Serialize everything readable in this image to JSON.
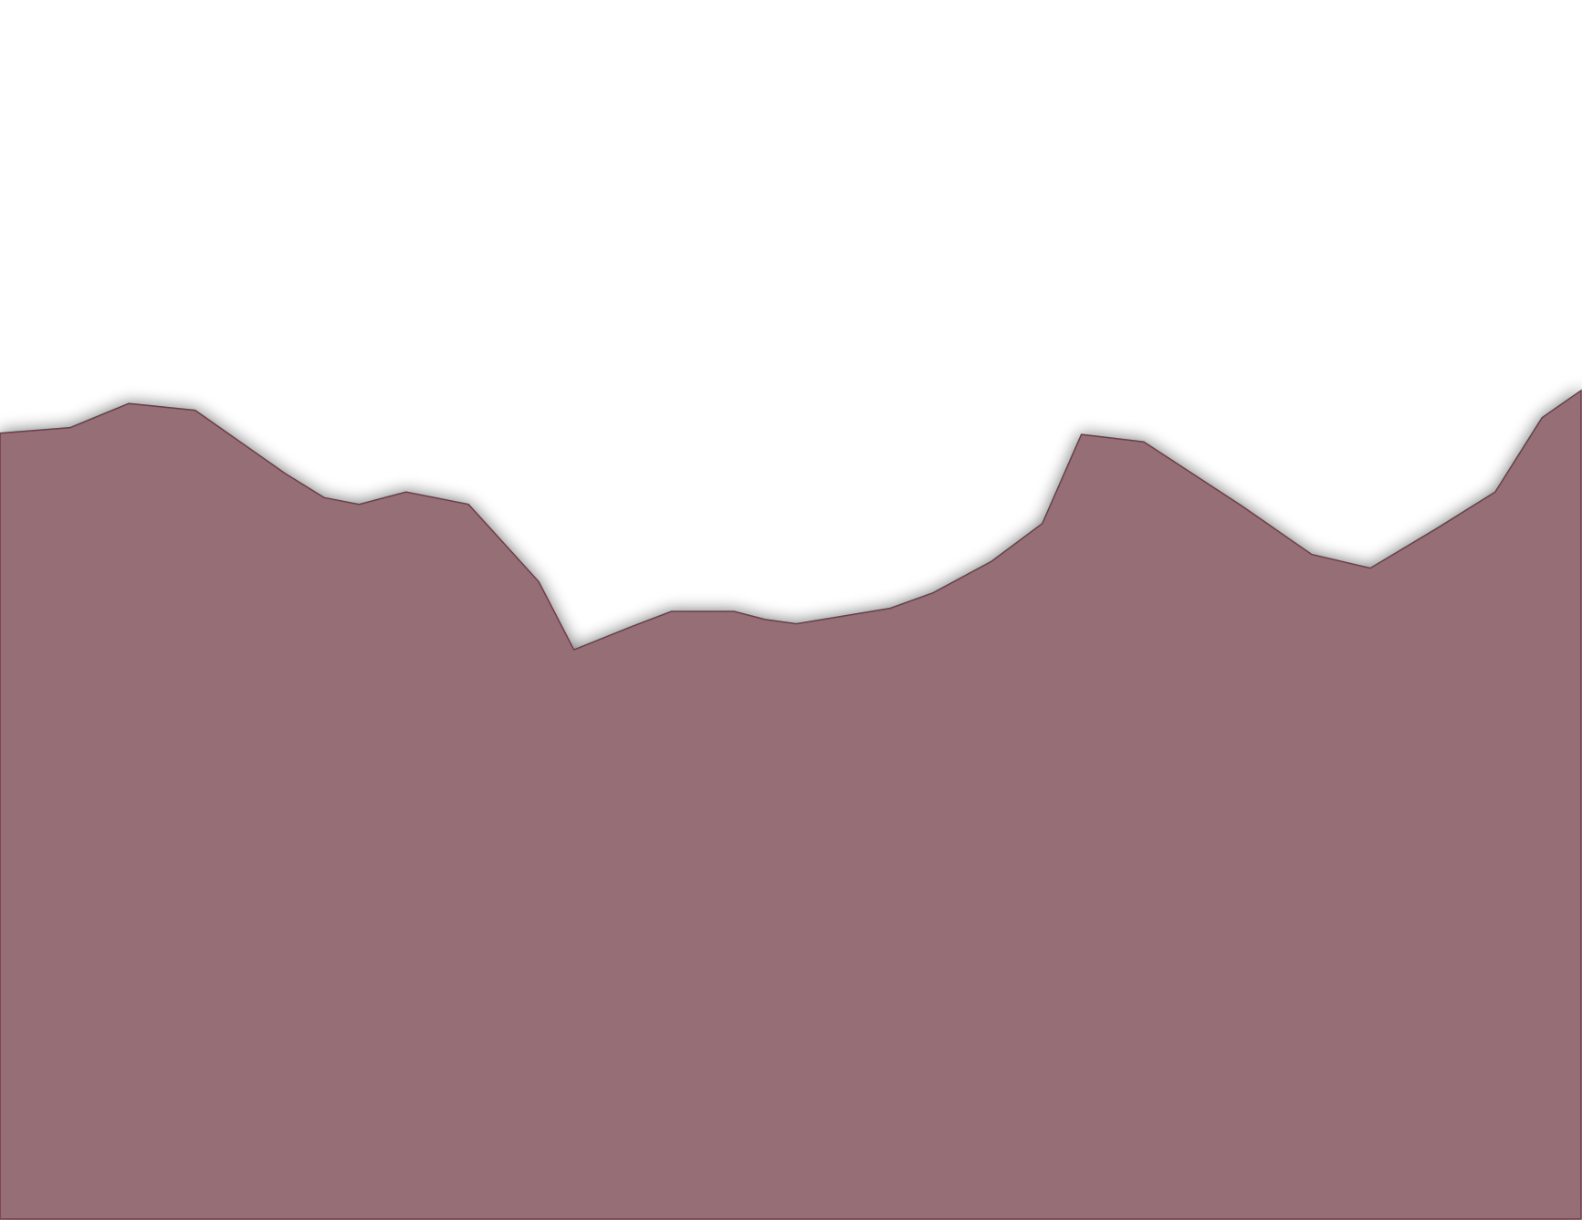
{
  "chart_data": {
    "type": "area",
    "title": "",
    "xlabel": "",
    "ylabel": "",
    "x": [
      0,
      1.8,
      3.3,
      5.0,
      7.3,
      8.3,
      9.2,
      10.4,
      12.0,
      13.8,
      14.7,
      16.2,
      17.2,
      18.8,
      19.6,
      20.4,
      22.8,
      23.9,
      25.4,
      26.7,
      27.7,
      29.3,
      31.8,
      33.6,
      35.1,
      36.8,
      38.3,
      39.5,
      40.5
    ],
    "values": [
      1000,
      1009,
      1048,
      1037,
      935,
      896,
      885,
      905,
      885,
      760,
      650,
      688,
      712,
      712,
      699,
      692,
      717,
      742,
      793,
      854,
      998,
      986,
      883,
      804,
      782,
      846,
      905,
      1025,
      1069
    ],
    "xlim": [
      0,
      40.5
    ],
    "ylim": [
      -270,
      1700
    ],
    "grid": false,
    "legend": "none",
    "colors": {
      "fill": "#956e76",
      "stroke": "#6e3c48",
      "shadow": "#000000"
    }
  }
}
